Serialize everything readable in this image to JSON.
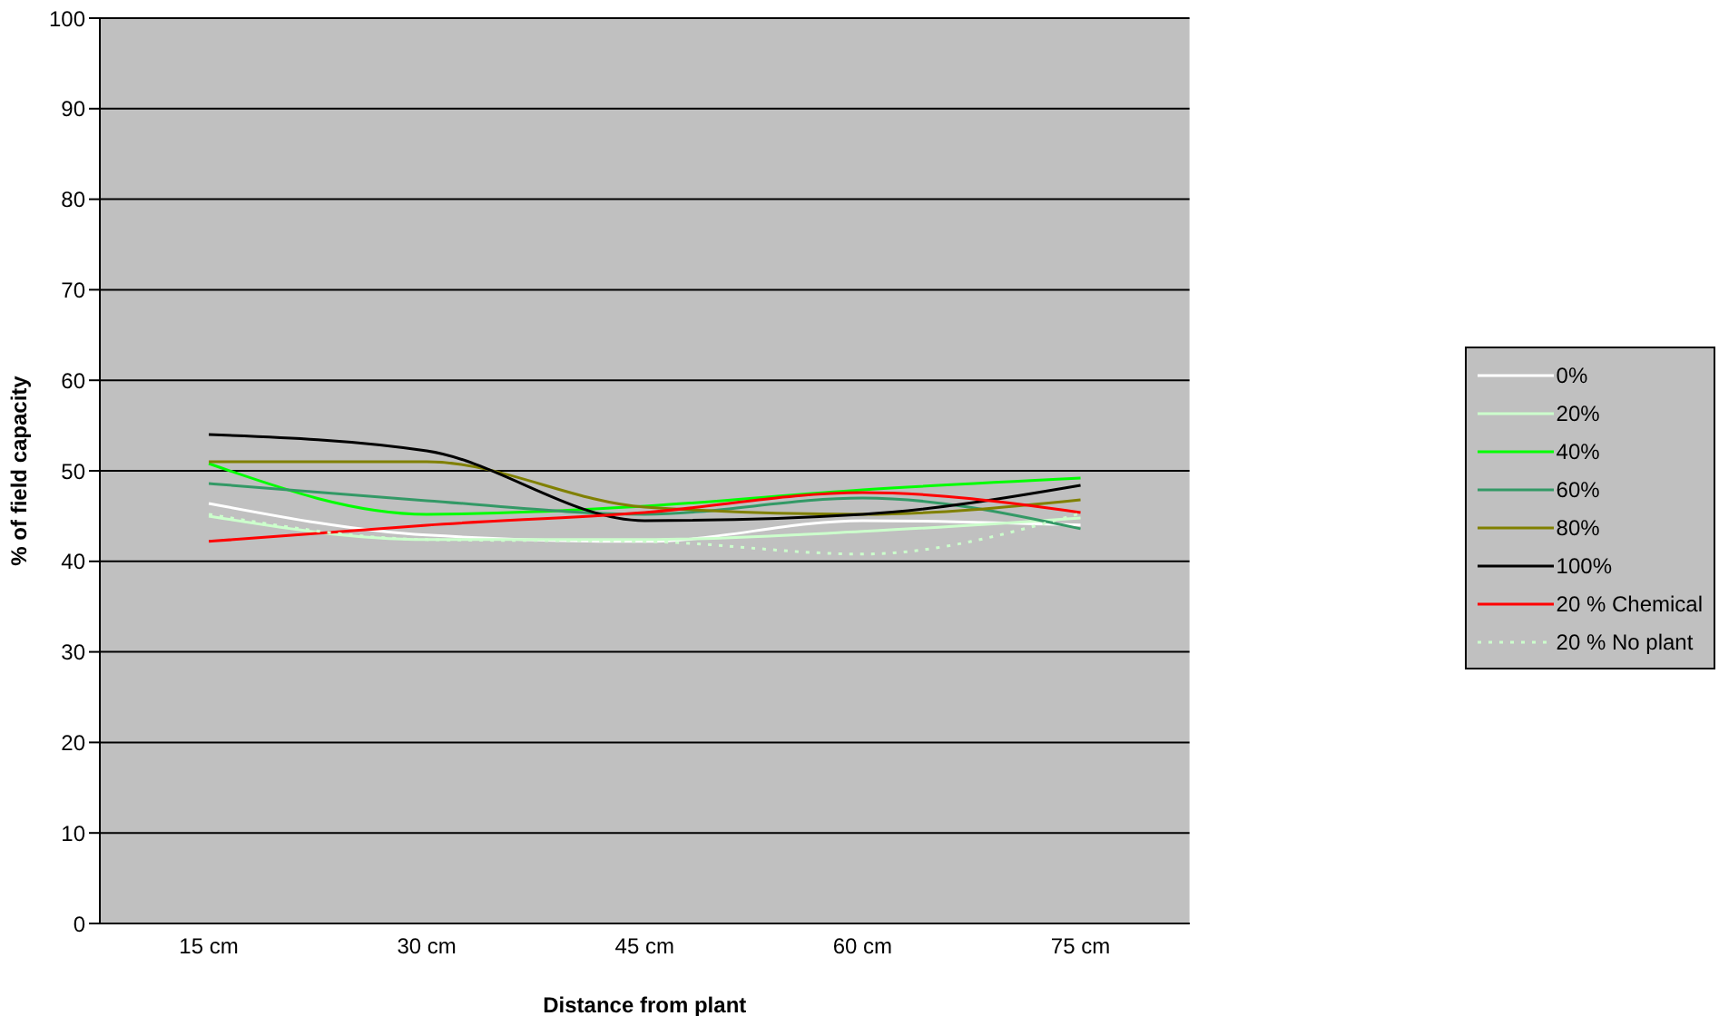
{
  "chart_data": {
    "type": "line",
    "xlabel": "Distance from plant",
    "ylabel": "% of field capacity",
    "categories": [
      "15 cm",
      "30 cm",
      "45 cm",
      "60 cm",
      "75 cm"
    ],
    "series": [
      {
        "name": "0%",
        "color": "#ffffff",
        "values": [
          46.4,
          42.9,
          42.2,
          44.5,
          44.0
        ]
      },
      {
        "name": "20%",
        "color": "#ccffcc",
        "values": [
          45.0,
          42.4,
          42.4,
          43.3,
          44.8
        ]
      },
      {
        "name": "40%",
        "color": "#00ff00",
        "values": [
          50.8,
          45.2,
          46.1,
          47.9,
          49.2
        ]
      },
      {
        "name": "60%",
        "color": "#339966",
        "values": [
          48.6,
          46.7,
          45.2,
          47.0,
          43.6
        ]
      },
      {
        "name": "80%",
        "color": "#808000",
        "values": [
          51.0,
          51.0,
          46.0,
          45.2,
          46.8
        ]
      },
      {
        "name": "100%",
        "color": "#000000",
        "values": [
          54.0,
          52.2,
          44.5,
          45.2,
          48.4
        ]
      },
      {
        "name": "20 % Chemical",
        "color": "#ff0000",
        "values": [
          42.2,
          44.0,
          45.4,
          47.6,
          45.4
        ]
      },
      {
        "name": "20 % No plant",
        "color": "#ccffcc",
        "line_style": "dotted",
        "values": [
          45.2,
          42.4,
          42.2,
          40.8,
          45.3
        ]
      }
    ],
    "ylim": [
      0,
      100
    ],
    "yticks": [
      0,
      10,
      20,
      30,
      40,
      50,
      60,
      70,
      80,
      90,
      100
    ],
    "grid": "y",
    "legend": "right",
    "marker": "none",
    "line_style": "solid"
  }
}
